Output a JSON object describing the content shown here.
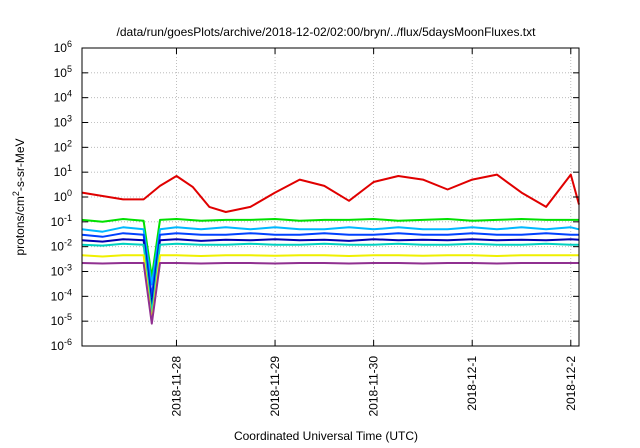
{
  "chart_data": {
    "type": "line",
    "title": "/data/run/goesPlots/archive/2018-12-02/02:00/bryn/../flux/5daysMoonFluxes.txt",
    "xlabel": "Coordinated Universal Time (UTC)",
    "ylabel_parts": [
      "protons/cm",
      "2",
      "-s-sr-MeV"
    ],
    "y_scale": "log",
    "ylim": [
      1e-06,
      1000000.0
    ],
    "xlim_days": [
      "2018-11-27 01:00",
      "2018-12-02 02:00"
    ],
    "grid": true,
    "legend": "none",
    "y_ticks": [
      {
        "value": 1e-06,
        "base": "10",
        "exp": "-6"
      },
      {
        "value": 1e-05,
        "base": "10",
        "exp": "-5"
      },
      {
        "value": 0.0001,
        "base": "10",
        "exp": "-4"
      },
      {
        "value": 0.001,
        "base": "10",
        "exp": "-3"
      },
      {
        "value": 0.01,
        "base": "10",
        "exp": "-2"
      },
      {
        "value": 0.1,
        "base": "10",
        "exp": "-1"
      },
      {
        "value": 1.0,
        "base": "10",
        "exp": "0"
      },
      {
        "value": 10.0,
        "base": "10",
        "exp": "1"
      },
      {
        "value": 100.0,
        "base": "10",
        "exp": "2"
      },
      {
        "value": 1000.0,
        "base": "10",
        "exp": "3"
      },
      {
        "value": 10000.0,
        "base": "10",
        "exp": "4"
      },
      {
        "value": 100000.0,
        "base": "10",
        "exp": "5"
      },
      {
        "value": 1000000.0,
        "base": "10",
        "exp": "6"
      }
    ],
    "x_ticks": [
      {
        "label": "2018-11-28",
        "date": "2018-11-28"
      },
      {
        "label": "2018-11-29",
        "date": "2018-11-29"
      },
      {
        "label": "2018-11-30",
        "date": "2018-11-30"
      },
      {
        "label": "2018-12-1",
        "date": "2018-12-01"
      },
      {
        "label": "2018-12-2",
        "date": "2018-12-02"
      }
    ],
    "series": [
      {
        "color": "#e00000",
        "x": [
          "2018-11-27 01:00",
          "2018-11-27 06:00",
          "2018-11-27 11:00",
          "2018-11-27 16:00",
          "2018-11-27 20:00",
          "2018-11-28 00:00",
          "2018-11-28 04:00",
          "2018-11-28 08:00",
          "2018-11-28 12:00",
          "2018-11-28 18:00",
          "2018-11-29 00:00",
          "2018-11-29 06:00",
          "2018-11-29 12:00",
          "2018-11-29 18:00",
          "2018-11-30 00:00",
          "2018-11-30 06:00",
          "2018-11-30 12:00",
          "2018-11-30 18:00",
          "2018-12-01 00:00",
          "2018-12-01 06:00",
          "2018-12-01 12:00",
          "2018-12-01 18:00",
          "2018-12-02 00:00",
          "2018-12-02 02:00"
        ],
        "y": [
          1.5,
          1.1,
          0.8,
          0.8,
          2.8,
          7,
          2.5,
          0.4,
          0.25,
          0.4,
          1.5,
          5,
          2.8,
          0.7,
          4,
          7,
          5,
          2,
          5,
          8,
          1.5,
          0.4,
          8,
          0.5
        ]
      },
      {
        "color": "#00e000",
        "x": [
          "2018-11-27 01:00",
          "2018-11-27 06:00",
          "2018-11-27 11:00",
          "2018-11-27 16:00",
          "2018-11-27 18:00",
          "2018-11-27 20:00",
          "2018-11-28 00:00",
          "2018-11-28 06:00",
          "2018-11-28 12:00",
          "2018-11-28 18:00",
          "2018-11-29 00:00",
          "2018-11-29 06:00",
          "2018-11-29 12:00",
          "2018-11-29 18:00",
          "2018-11-30 00:00",
          "2018-11-30 06:00",
          "2018-11-30 12:00",
          "2018-11-30 18:00",
          "2018-12-01 00:00",
          "2018-12-01 06:00",
          "2018-12-01 12:00",
          "2018-12-01 18:00",
          "2018-12-02 00:00",
          "2018-12-02 02:00"
        ],
        "y": [
          0.12,
          0.1,
          0.13,
          0.11,
          0.0006,
          0.12,
          0.13,
          0.11,
          0.12,
          0.12,
          0.13,
          0.11,
          0.12,
          0.12,
          0.13,
          0.11,
          0.12,
          0.13,
          0.11,
          0.12,
          0.13,
          0.12,
          0.12,
          0.12
        ]
      },
      {
        "color": "#00b8ff",
        "x": [
          "2018-11-27 01:00",
          "2018-11-27 06:00",
          "2018-11-27 11:00",
          "2018-11-27 16:00",
          "2018-11-27 18:00",
          "2018-11-27 20:00",
          "2018-11-28 00:00",
          "2018-11-28 06:00",
          "2018-11-28 12:00",
          "2018-11-28 18:00",
          "2018-11-29 00:00",
          "2018-11-29 06:00",
          "2018-11-29 12:00",
          "2018-11-29 18:00",
          "2018-11-30 00:00",
          "2018-11-30 06:00",
          "2018-11-30 12:00",
          "2018-11-30 18:00",
          "2018-12-01 00:00",
          "2018-12-01 06:00",
          "2018-12-01 12:00",
          "2018-12-01 18:00",
          "2018-12-02 00:00",
          "2018-12-02 02:00"
        ],
        "y": [
          0.05,
          0.04,
          0.06,
          0.05,
          0.0003,
          0.05,
          0.06,
          0.05,
          0.06,
          0.05,
          0.06,
          0.05,
          0.05,
          0.06,
          0.05,
          0.06,
          0.05,
          0.05,
          0.06,
          0.05,
          0.06,
          0.05,
          0.06,
          0.05
        ]
      },
      {
        "color": "#0040ff",
        "x": [
          "2018-11-27 01:00",
          "2018-11-27 06:00",
          "2018-11-27 11:00",
          "2018-11-27 16:00",
          "2018-11-27 18:00",
          "2018-11-27 20:00",
          "2018-11-28 00:00",
          "2018-11-28 06:00",
          "2018-11-28 12:00",
          "2018-11-28 18:00",
          "2018-11-29 00:00",
          "2018-11-29 06:00",
          "2018-11-29 12:00",
          "2018-11-29 18:00",
          "2018-11-30 00:00",
          "2018-11-30 06:00",
          "2018-11-30 12:00",
          "2018-11-30 18:00",
          "2018-12-01 00:00",
          "2018-12-01 06:00",
          "2018-12-01 12:00",
          "2018-12-01 18:00",
          "2018-12-02 00:00",
          "2018-12-02 02:00"
        ],
        "y": [
          0.03,
          0.025,
          0.035,
          0.03,
          0.0001,
          0.03,
          0.035,
          0.03,
          0.03,
          0.035,
          0.03,
          0.03,
          0.035,
          0.03,
          0.03,
          0.035,
          0.03,
          0.03,
          0.035,
          0.03,
          0.03,
          0.035,
          0.03,
          0.03
        ]
      },
      {
        "color": "#0000b0",
        "x": [
          "2018-11-27 01:00",
          "2018-11-27 06:00",
          "2018-11-27 11:00",
          "2018-11-27 16:00",
          "2018-11-27 18:00",
          "2018-11-27 20:00",
          "2018-11-28 00:00",
          "2018-11-28 06:00",
          "2018-11-28 12:00",
          "2018-11-28 18:00",
          "2018-11-29 00:00",
          "2018-11-29 06:00",
          "2018-11-29 12:00",
          "2018-11-29 18:00",
          "2018-11-30 00:00",
          "2018-11-30 06:00",
          "2018-11-30 12:00",
          "2018-11-30 18:00",
          "2018-12-01 00:00",
          "2018-12-01 06:00",
          "2018-12-01 12:00",
          "2018-12-01 18:00",
          "2018-12-02 00:00",
          "2018-12-02 02:00"
        ],
        "y": [
          0.018,
          0.016,
          0.02,
          0.018,
          4e-05,
          0.018,
          0.02,
          0.017,
          0.019,
          0.018,
          0.02,
          0.018,
          0.019,
          0.017,
          0.02,
          0.018,
          0.019,
          0.018,
          0.02,
          0.018,
          0.019,
          0.018,
          0.02,
          0.019
        ]
      },
      {
        "color": "#00d0c0",
        "x": [
          "2018-11-27 01:00",
          "2018-11-27 06:00",
          "2018-11-27 11:00",
          "2018-11-27 16:00",
          "2018-11-27 18:00",
          "2018-11-27 20:00",
          "2018-11-28 00:00",
          "2018-11-28 06:00",
          "2018-11-28 12:00",
          "2018-11-28 18:00",
          "2018-11-29 00:00",
          "2018-11-29 06:00",
          "2018-11-29 12:00",
          "2018-11-29 18:00",
          "2018-11-30 00:00",
          "2018-11-30 06:00",
          "2018-11-30 12:00",
          "2018-11-30 18:00",
          "2018-12-01 00:00",
          "2018-12-01 06:00",
          "2018-12-01 12:00",
          "2018-12-01 18:00",
          "2018-12-02 00:00",
          "2018-12-02 02:00"
        ],
        "y": [
          0.012,
          0.011,
          0.013,
          0.012,
          2e-05,
          0.012,
          0.013,
          0.012,
          0.012,
          0.013,
          0.012,
          0.012,
          0.013,
          0.012,
          0.012,
          0.013,
          0.012,
          0.012,
          0.013,
          0.012,
          0.012,
          0.013,
          0.012,
          0.012
        ]
      },
      {
        "color": "#f0f000",
        "x": [
          "2018-11-27 01:00",
          "2018-11-27 06:00",
          "2018-11-27 11:00",
          "2018-11-27 16:00",
          "2018-11-27 18:00",
          "2018-11-27 20:00",
          "2018-11-28 00:00",
          "2018-11-28 06:00",
          "2018-11-28 12:00",
          "2018-11-28 18:00",
          "2018-11-29 00:00",
          "2018-11-29 06:00",
          "2018-11-29 12:00",
          "2018-11-29 18:00",
          "2018-11-30 00:00",
          "2018-11-30 06:00",
          "2018-11-30 12:00",
          "2018-11-30 18:00",
          "2018-12-01 00:00",
          "2018-12-01 06:00",
          "2018-12-01 12:00",
          "2018-12-01 18:00",
          "2018-12-02 00:00",
          "2018-12-02 02:00"
        ],
        "y": [
          0.0045,
          0.004,
          0.0045,
          0.0045,
          1e-05,
          0.0045,
          0.0045,
          0.0042,
          0.0045,
          0.0045,
          0.0043,
          0.0045,
          0.0045,
          0.0042,
          0.0045,
          0.0045,
          0.0043,
          0.0045,
          0.0045,
          0.0042,
          0.0045,
          0.0045,
          0.0045,
          0.0045
        ]
      },
      {
        "color": "#903090",
        "x": [
          "2018-11-27 01:00",
          "2018-11-27 06:00",
          "2018-11-27 11:00",
          "2018-11-27 16:00",
          "2018-11-27 18:00",
          "2018-11-27 20:00",
          "2018-11-28 00:00",
          "2018-11-28 06:00",
          "2018-11-28 12:00",
          "2018-11-28 18:00",
          "2018-11-29 00:00",
          "2018-11-29 06:00",
          "2018-11-29 12:00",
          "2018-11-29 18:00",
          "2018-11-30 00:00",
          "2018-11-30 06:00",
          "2018-11-30 12:00",
          "2018-11-30 18:00",
          "2018-12-01 00:00",
          "2018-12-01 06:00",
          "2018-12-01 12:00",
          "2018-12-01 18:00",
          "2018-12-02 00:00",
          "2018-12-02 02:00"
        ],
        "y": [
          0.0022,
          0.0021,
          0.0022,
          0.0022,
          8e-06,
          0.0022,
          0.0022,
          0.0021,
          0.0022,
          0.0022,
          0.0021,
          0.0022,
          0.0022,
          0.0021,
          0.0022,
          0.0022,
          0.0021,
          0.0022,
          0.0022,
          0.0021,
          0.0022,
          0.0022,
          0.0022,
          0.0022
        ]
      }
    ]
  }
}
